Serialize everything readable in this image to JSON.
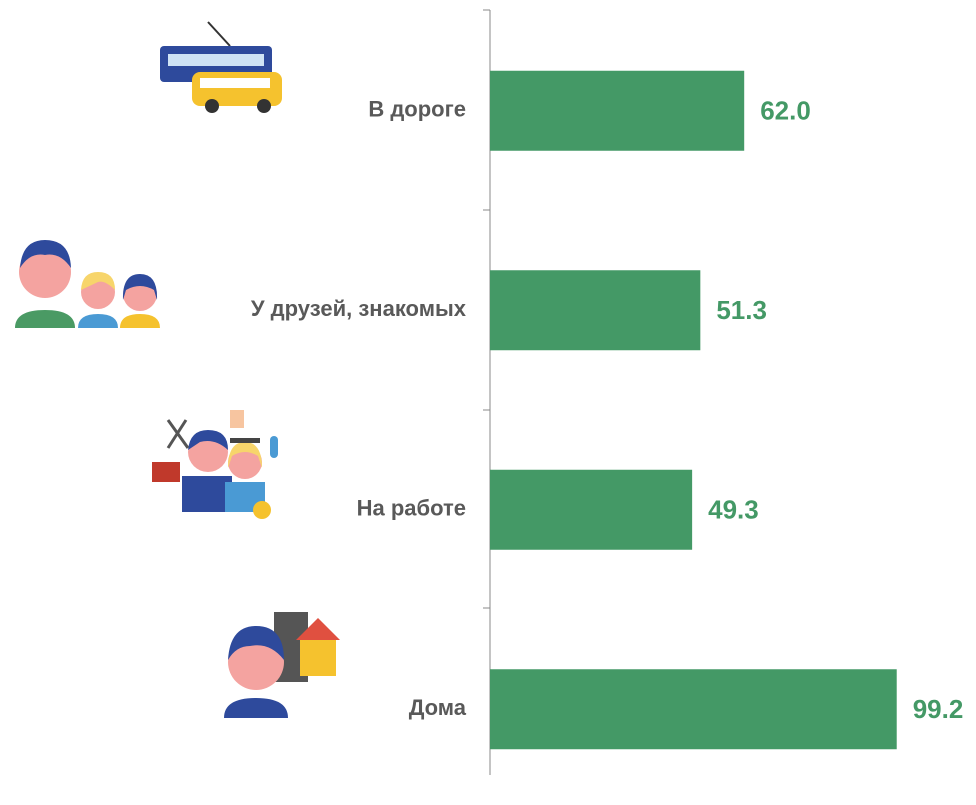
{
  "chart_data": {
    "type": "hbar",
    "categories": [
      "В дороге",
      "У друзей, знакомых",
      "На работе",
      "Дома"
    ],
    "values": [
      62.0,
      51.3,
      49.3,
      99.2
    ],
    "value_labels": [
      "62.0",
      "51.3",
      "49.3",
      "99.2"
    ],
    "color": "#449966",
    "label_color": "#449966",
    "xlim": [
      0,
      100
    ]
  }
}
